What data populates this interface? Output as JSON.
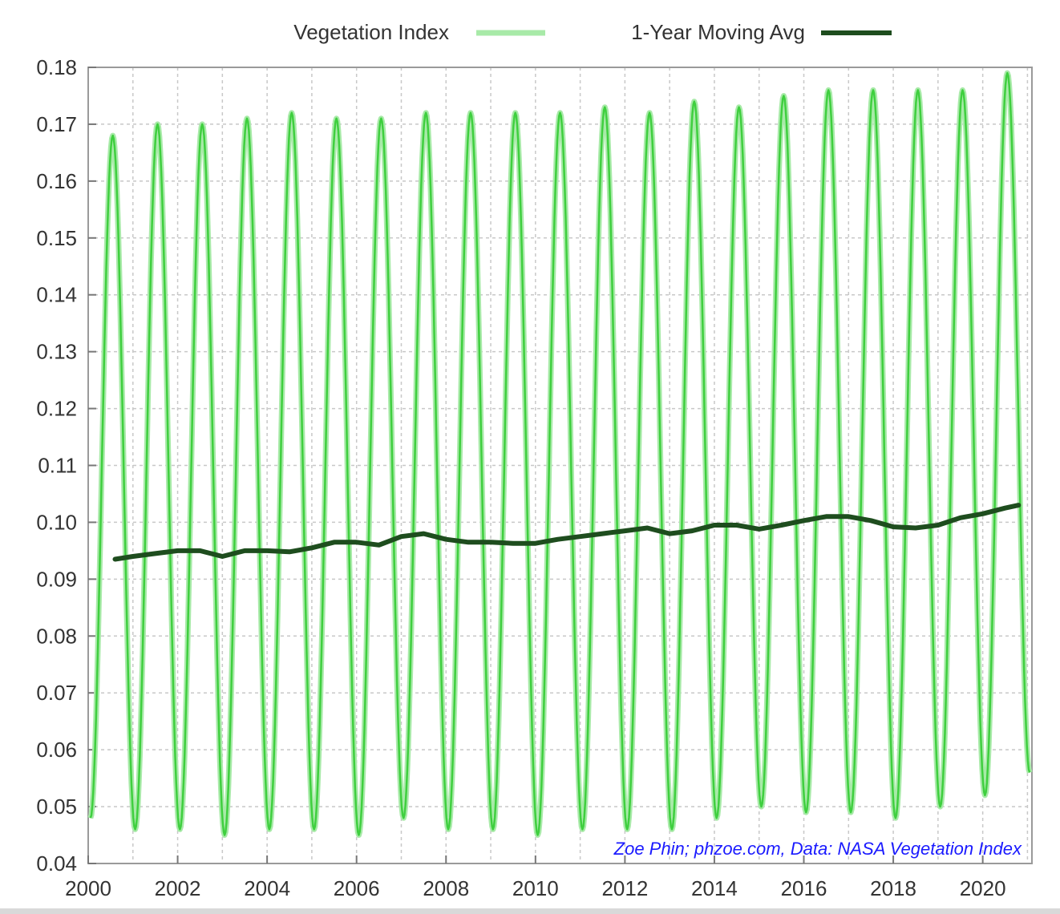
{
  "legend": {
    "series1_label": "Vegetation Index",
    "series2_label": "1-Year Moving Avg"
  },
  "credit": "Zoe Phin; phzoe.com, Data: NASA Vegetation Index",
  "colors": {
    "vegetation": "#3fcf3f",
    "vegetation_light": "#a8eaa8",
    "moving_avg": "#1e4d1e",
    "grid": "#c8c8c8",
    "credit": "#1a1aff"
  },
  "chart_data": {
    "type": "line",
    "title": "",
    "xlabel": "",
    "ylabel": "",
    "xlim": [
      2000,
      2021.1
    ],
    "ylim": [
      0.04,
      0.18
    ],
    "grid": true,
    "legend_position": "top",
    "x_ticks": [
      2000,
      2002,
      2004,
      2006,
      2008,
      2010,
      2012,
      2014,
      2016,
      2018,
      2020
    ],
    "y_ticks": [
      "0.04",
      "0.05",
      "0.06",
      "0.07",
      "0.08",
      "0.09",
      "0.10",
      "0.11",
      "0.12",
      "0.13",
      "0.14",
      "0.15",
      "0.16",
      "0.17",
      "0.18"
    ],
    "series": [
      {
        "name": "Vegetation Index",
        "style": "seasonal oscillation",
        "peaks": [
          [
            2000.55,
            0.168
          ],
          [
            2001.55,
            0.17
          ],
          [
            2002.55,
            0.17
          ],
          [
            2003.55,
            0.171
          ],
          [
            2004.55,
            0.172
          ],
          [
            2005.55,
            0.171
          ],
          [
            2006.55,
            0.171
          ],
          [
            2007.55,
            0.172
          ],
          [
            2008.55,
            0.172
          ],
          [
            2009.55,
            0.172
          ],
          [
            2010.55,
            0.172
          ],
          [
            2011.55,
            0.173
          ],
          [
            2012.55,
            0.172
          ],
          [
            2013.55,
            0.174
          ],
          [
            2014.55,
            0.173
          ],
          [
            2015.55,
            0.175
          ],
          [
            2016.55,
            0.176
          ],
          [
            2017.55,
            0.176
          ],
          [
            2018.55,
            0.176
          ],
          [
            2019.55,
            0.176
          ],
          [
            2020.55,
            0.179
          ]
        ],
        "troughs": [
          [
            2000.05,
            0.048
          ],
          [
            2001.05,
            0.046
          ],
          [
            2002.05,
            0.046
          ],
          [
            2003.05,
            0.045
          ],
          [
            2004.05,
            0.046
          ],
          [
            2005.05,
            0.046
          ],
          [
            2006.05,
            0.045
          ],
          [
            2007.05,
            0.048
          ],
          [
            2008.05,
            0.046
          ],
          [
            2009.05,
            0.046
          ],
          [
            2010.05,
            0.045
          ],
          [
            2011.05,
            0.046
          ],
          [
            2012.05,
            0.046
          ],
          [
            2013.05,
            0.046
          ],
          [
            2014.05,
            0.048
          ],
          [
            2015.05,
            0.05
          ],
          [
            2016.05,
            0.049
          ],
          [
            2017.05,
            0.049
          ],
          [
            2018.05,
            0.048
          ],
          [
            2019.05,
            0.05
          ],
          [
            2020.05,
            0.052
          ],
          [
            2021.05,
            0.056
          ]
        ]
      },
      {
        "name": "1-Year Moving Avg",
        "x": [
          2000.6,
          2001.0,
          2001.5,
          2002.0,
          2002.5,
          2003.0,
          2003.5,
          2004.0,
          2004.5,
          2005.0,
          2005.5,
          2006.0,
          2006.5,
          2007.0,
          2007.5,
          2008.0,
          2008.5,
          2009.0,
          2009.5,
          2010.0,
          2010.5,
          2011.0,
          2011.5,
          2012.0,
          2012.5,
          2013.0,
          2013.5,
          2014.0,
          2014.5,
          2015.0,
          2015.5,
          2016.0,
          2016.5,
          2017.0,
          2017.5,
          2018.0,
          2018.5,
          2019.0,
          2019.5,
          2020.0,
          2020.5,
          2020.8
        ],
        "values": [
          0.0935,
          0.094,
          0.0945,
          0.095,
          0.095,
          0.094,
          0.095,
          0.095,
          0.0948,
          0.0955,
          0.0965,
          0.0965,
          0.096,
          0.0975,
          0.098,
          0.097,
          0.0965,
          0.0965,
          0.0963,
          0.0963,
          0.097,
          0.0975,
          0.098,
          0.0985,
          0.099,
          0.098,
          0.0985,
          0.0995,
          0.0995,
          0.0988,
          0.0995,
          0.1003,
          0.101,
          0.101,
          0.1003,
          0.0992,
          0.099,
          0.0995,
          0.1008,
          0.1015,
          0.1025,
          0.103
        ]
      }
    ]
  }
}
